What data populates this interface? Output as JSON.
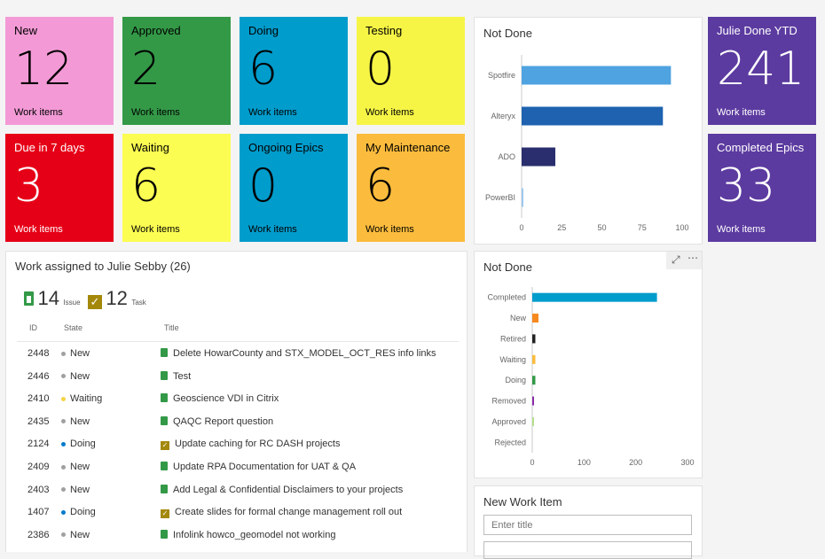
{
  "tiles": [
    {
      "title": "New",
      "count": "12",
      "footer": "Work items",
      "color": "#f39ad6"
    },
    {
      "title": "Approved",
      "count": "2",
      "footer": "Work items",
      "color": "#339947"
    },
    {
      "title": "Doing",
      "count": "6",
      "footer": "Work items",
      "color": "#009ccc"
    },
    {
      "title": "Testing",
      "count": "0",
      "footer": "Work items",
      "color": "#f6f546"
    },
    {
      "title": "Due in 7 days",
      "count": "3",
      "footer": "Work items",
      "color": "#e60017"
    },
    {
      "title": "Waiting",
      "count": "6",
      "footer": "Work items",
      "color": "#fbfd52"
    },
    {
      "title": "Ongoing Epics",
      "count": "0",
      "footer": "Work items",
      "color": "#009ccc"
    },
    {
      "title": "My Maintenance",
      "count": "6",
      "footer": "Work items",
      "color": "#fbbc3d"
    },
    {
      "title": "Julie Done YTD",
      "count": "241",
      "footer": "Work items",
      "color": "#5c3ba0"
    },
    {
      "title": "Completed Epics",
      "count": "33",
      "footer": "Work items",
      "color": "#5c3ba0"
    }
  ],
  "chart1": {
    "title": "Not Done"
  },
  "chart2": {
    "title": "Not Done"
  },
  "chart_data": [
    {
      "type": "bar",
      "orientation": "horizontal",
      "title": "Not Done",
      "categories": [
        "Spotfire",
        "Alteryx",
        "ADO",
        "PowerBI"
      ],
      "values": [
        93,
        88,
        21,
        1
      ],
      "colors": [
        "#4fa3e0",
        "#1e62b0",
        "#2a2e6e",
        "#9dc8ee"
      ],
      "xlim": [
        0,
        100
      ],
      "xticks": [
        0,
        25,
        50,
        75,
        100
      ],
      "grid": false
    },
    {
      "type": "bar",
      "orientation": "horizontal",
      "title": "Not Done",
      "categories": [
        "Completed",
        "New",
        "Retired",
        "Waiting",
        "Doing",
        "Removed",
        "Approved",
        "Rejected"
      ],
      "values": [
        241,
        12,
        6,
        6,
        6,
        1,
        2,
        0
      ],
      "colors": [
        "#009ccc",
        "#f7891f",
        "#222222",
        "#fbbc3d",
        "#339947",
        "#8a2aa8",
        "#b5e08c",
        "#aaaaaa"
      ],
      "xlim": [
        0,
        300
      ],
      "xticks": [
        0,
        100,
        200,
        300
      ],
      "grid": false
    }
  ],
  "work": {
    "title": "Work assigned to Julie Sebby (26)",
    "issue_count": "14",
    "issue_label": "Issue",
    "task_count": "12",
    "task_label": "Task",
    "headers": {
      "id": "ID",
      "state": "State",
      "title": "Title"
    },
    "rows": [
      {
        "id": "2448",
        "state": "New",
        "title": "Delete HowarCounty and STX_MODEL_OCT_RES info links",
        "type": "issue",
        "state_color": "#a0a0a0"
      },
      {
        "id": "2446",
        "state": "New",
        "title": "Test",
        "type": "issue",
        "state_color": "#a0a0a0"
      },
      {
        "id": "2410",
        "state": "Waiting",
        "title": "Geoscience VDI in Citrix",
        "type": "issue",
        "state_color": "#f5d547"
      },
      {
        "id": "2435",
        "state": "New",
        "title": "QAQC Report question",
        "type": "issue",
        "state_color": "#a0a0a0"
      },
      {
        "id": "2124",
        "state": "Doing",
        "title": "Update caching for RC DASH projects",
        "type": "task",
        "state_color": "#007acc"
      },
      {
        "id": "2409",
        "state": "New",
        "title": "Update RPA Documentation for UAT & QA",
        "type": "issue",
        "state_color": "#a0a0a0"
      },
      {
        "id": "2403",
        "state": "New",
        "title": "Add Legal & Confidential Disclaimers to your projects",
        "type": "issue",
        "state_color": "#a0a0a0"
      },
      {
        "id": "1407",
        "state": "Doing",
        "title": "Create slides for formal change management roll out",
        "type": "task",
        "state_color": "#007acc"
      },
      {
        "id": "2386",
        "state": "New",
        "title": "Infolink howco_geomodel not working",
        "type": "issue",
        "state_color": "#a0a0a0"
      }
    ]
  },
  "new_item": {
    "title": "New Work Item",
    "placeholder": "Enter title"
  }
}
